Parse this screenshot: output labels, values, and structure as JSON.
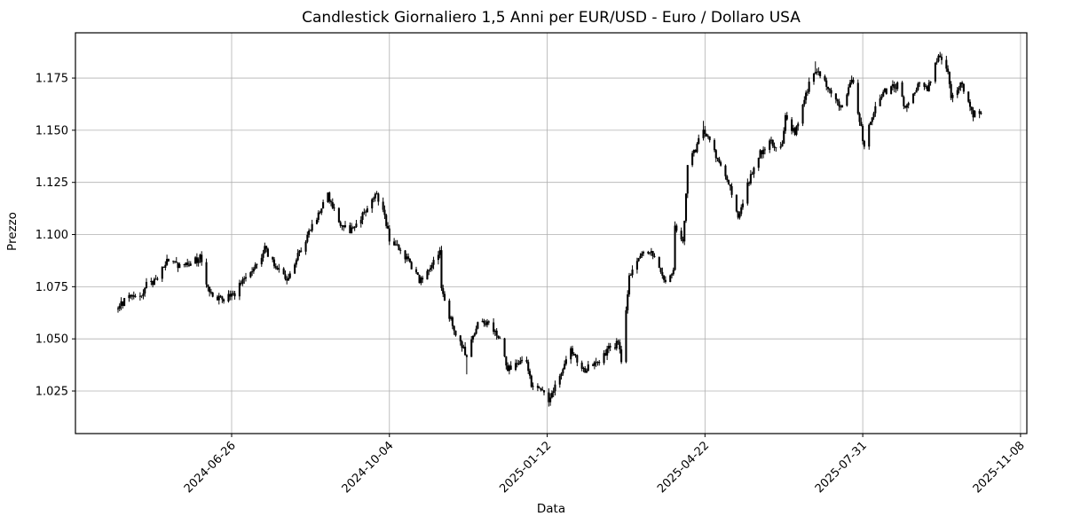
{
  "figure": {
    "background_color": "#ffffff",
    "text_color": "#000000"
  },
  "chart_data": {
    "type": "candlestick",
    "title": "Candlestick Giornaliero 1,5 Anni per EUR/USD - Euro / Dollaro USA",
    "xlabel": "Data",
    "ylabel": "Prezzo",
    "instrument": "EUR/USD - Euro / Dollaro USA",
    "grid": true,
    "grid_color": "#b0b0b0",
    "candle_color": "#000000",
    "spine_color": "#000000",
    "ylim": [
      1.0046,
      1.1967
    ],
    "xlim": [
      "2024-03-19",
      "2025-11-12"
    ],
    "y_tick_labels": [
      "1.025",
      "1.050",
      "1.075",
      "1.100",
      "1.125",
      "1.150",
      "1.175"
    ],
    "x_tick_labels": [
      "2024-06-26",
      "2024-10-04",
      "2025-01-12",
      "2025-04-22",
      "2025-07-31",
      "2025-11-08"
    ],
    "series_start": "2024-04-15",
    "series_end": "2025-10-14",
    "frequency": "daily-weekdays",
    "close_anchors": [
      [
        "2024-04-15",
        1.064
      ],
      [
        "2024-04-17",
        1.067
      ],
      [
        "2024-04-23",
        1.07
      ],
      [
        "2024-04-30",
        1.0715
      ],
      [
        "2024-05-03",
        1.076
      ],
      [
        "2024-05-09",
        1.078
      ],
      [
        "2024-05-16",
        1.088
      ],
      [
        "2024-05-21",
        1.0855
      ],
      [
        "2024-05-24",
        1.0845
      ],
      [
        "2024-06-04",
        1.088
      ],
      [
        "2024-06-06",
        1.089
      ],
      [
        "2024-06-11",
        1.074
      ],
      [
        "2024-06-14",
        1.0705
      ],
      [
        "2024-06-21",
        1.069
      ],
      [
        "2024-06-28",
        1.0715
      ],
      [
        "2024-07-03",
        1.0785
      ],
      [
        "2024-07-10",
        1.083
      ],
      [
        "2024-07-17",
        1.0935
      ],
      [
        "2024-07-24",
        1.084
      ],
      [
        "2024-08-01",
        1.0785
      ],
      [
        "2024-08-08",
        1.092
      ],
      [
        "2024-08-14",
        1.101
      ],
      [
        "2024-08-26",
        1.1185
      ],
      [
        "2024-09-03",
        1.1045
      ],
      [
        "2024-09-11",
        1.1015
      ],
      [
        "2024-09-25",
        1.119
      ],
      [
        "2024-09-30",
        1.1135
      ],
      [
        "2024-10-04",
        1.0975
      ],
      [
        "2024-10-15",
        1.089
      ],
      [
        "2024-10-23",
        1.078
      ],
      [
        "2024-10-31",
        1.0855
      ],
      [
        "2024-11-05",
        1.093
      ],
      [
        "2024-11-06",
        1.073
      ],
      [
        "2024-11-13",
        1.0565
      ],
      [
        "2024-11-22",
        1.042
      ],
      [
        "2024-11-29",
        1.058
      ],
      [
        "2024-12-06",
        1.057
      ],
      [
        "2024-12-13",
        1.05
      ],
      [
        "2024-12-18",
        1.0355
      ],
      [
        "2024-12-30",
        1.04
      ],
      [
        "2025-01-02",
        1.027
      ],
      [
        "2025-01-10",
        1.0245
      ],
      [
        "2025-01-13",
        1.0205
      ],
      [
        "2025-01-20",
        1.033
      ],
      [
        "2025-01-27",
        1.046
      ],
      [
        "2025-02-03",
        1.0345
      ],
      [
        "2025-02-12",
        1.038
      ],
      [
        "2025-02-19",
        1.0445
      ],
      [
        "2025-02-26",
        1.048
      ],
      [
        "2025-02-28",
        1.04
      ],
      [
        "2025-03-05",
        1.079
      ],
      [
        "2025-03-11",
        1.089
      ],
      [
        "2025-03-18",
        1.093
      ],
      [
        "2025-03-27",
        1.078
      ],
      [
        "2025-04-02",
        1.082
      ],
      [
        "2025-04-03",
        1.105
      ],
      [
        "2025-04-08",
        1.096
      ],
      [
        "2025-04-11",
        1.132
      ],
      [
        "2025-04-21",
        1.15
      ],
      [
        "2025-04-29",
        1.138
      ],
      [
        "2025-05-08",
        1.123
      ],
      [
        "2025-05-13",
        1.109
      ],
      [
        "2025-05-19",
        1.124
      ],
      [
        "2025-05-26",
        1.138
      ],
      [
        "2025-06-02",
        1.144
      ],
      [
        "2025-06-10",
        1.142
      ],
      [
        "2025-06-12",
        1.158
      ],
      [
        "2025-06-18",
        1.148
      ],
      [
        "2025-06-26",
        1.17
      ],
      [
        "2025-07-01",
        1.179
      ],
      [
        "2025-07-10",
        1.17
      ],
      [
        "2025-07-17",
        1.16
      ],
      [
        "2025-07-24",
        1.1755
      ],
      [
        "2025-08-01",
        1.142
      ],
      [
        "2025-08-06",
        1.157
      ],
      [
        "2025-08-13",
        1.168
      ],
      [
        "2025-08-22",
        1.1715
      ],
      [
        "2025-08-27",
        1.161
      ],
      [
        "2025-09-05",
        1.172
      ],
      [
        "2025-09-10",
        1.17
      ],
      [
        "2025-09-17",
        1.1855
      ],
      [
        "2025-09-23",
        1.179
      ],
      [
        "2025-09-25",
        1.166
      ],
      [
        "2025-10-01",
        1.173
      ],
      [
        "2025-10-09",
        1.157
      ],
      [
        "2025-10-14",
        1.16
      ]
    ],
    "wick_extremes": [
      {
        "date": "2024-11-22",
        "low": 1.033
      },
      {
        "date": "2025-01-13",
        "low": 1.018
      },
      {
        "date": "2025-04-21",
        "high": 1.1545
      },
      {
        "date": "2025-07-01",
        "high": 1.183
      },
      {
        "date": "2025-09-17",
        "high": 1.1865
      }
    ]
  }
}
